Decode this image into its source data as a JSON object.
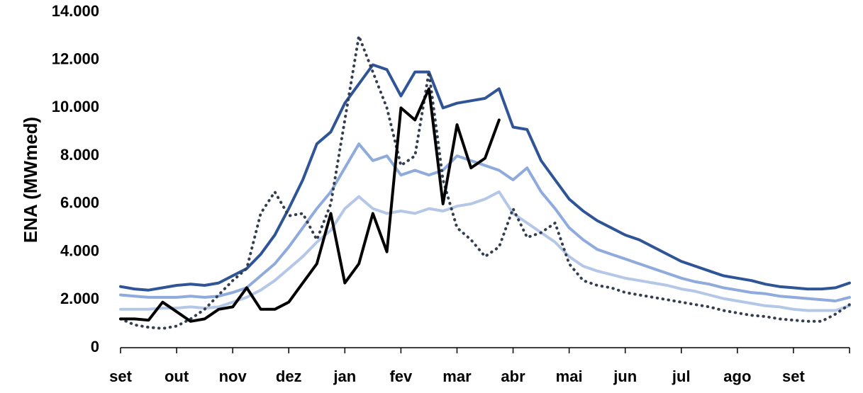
{
  "chart_data": {
    "type": "line",
    "y_label": "ENA (MWmed)",
    "x": [
      0,
      0.25,
      0.5,
      0.75,
      1,
      1.25,
      1.5,
      1.75,
      2,
      2.25,
      2.5,
      2.75,
      3,
      3.25,
      3.5,
      3.75,
      4,
      4.25,
      4.5,
      4.75,
      5,
      5.25,
      5.5,
      5.75,
      6,
      6.25,
      6.5,
      6.75,
      7,
      7.25,
      7.5,
      7.75,
      8,
      8.25,
      8.5,
      8.75,
      9,
      9.25,
      9.5,
      9.75,
      10,
      10.25,
      10.5,
      10.75,
      11,
      11.25,
      11.5,
      11.75,
      12,
      12.25,
      12.5,
      12.75,
      13
    ],
    "xlim": [
      0,
      13
    ],
    "xticks": [
      {
        "value": 0,
        "label": "set"
      },
      {
        "value": 1,
        "label": "out"
      },
      {
        "value": 2,
        "label": "nov"
      },
      {
        "value": 3,
        "label": "dez"
      },
      {
        "value": 4,
        "label": "jan"
      },
      {
        "value": 5,
        "label": "fev"
      },
      {
        "value": 6,
        "label": "mar"
      },
      {
        "value": 7,
        "label": "abr"
      },
      {
        "value": 8,
        "label": "mai"
      },
      {
        "value": 9,
        "label": "jun"
      },
      {
        "value": 10,
        "label": "jul"
      },
      {
        "value": 11,
        "label": "ago"
      },
      {
        "value": 12,
        "label": "set"
      }
    ],
    "ylim": [
      0,
      14000
    ],
    "yticks": [
      0,
      {
        "value": 2000,
        "label": "2.000"
      },
      {
        "value": 4000,
        "label": "4.000"
      },
      {
        "value": 6000,
        "label": "6.000"
      },
      {
        "value": 8000,
        "label": "8.000"
      },
      {
        "value": 10000,
        "label": "10.000"
      },
      {
        "value": 12000,
        "label": "12.000"
      },
      {
        "value": 14000,
        "label": "14.000"
      }
    ],
    "grid": false,
    "series": [
      {
        "color": "#b4c7e7",
        "style": "solid",
        "values": [
          1600,
          1600,
          1600,
          1650,
          1650,
          1700,
          1650,
          1700,
          1900,
          2100,
          2400,
          2800,
          3300,
          3800,
          4400,
          4900,
          5800,
          6300,
          5800,
          5600,
          5700,
          5600,
          5800,
          5700,
          5900,
          6000,
          6200,
          6500,
          5600,
          5200,
          4800,
          4400,
          3800,
          3400,
          3200,
          3050,
          2900,
          2800,
          2700,
          2600,
          2450,
          2350,
          2200,
          2050,
          1950,
          1850,
          1750,
          1700,
          1600,
          1550,
          1550,
          1550,
          1750
        ]
      },
      {
        "color": "#8faadc",
        "style": "solid",
        "values": [
          2200,
          2150,
          2100,
          2100,
          2100,
          2150,
          2100,
          2150,
          2300,
          2500,
          3000,
          3500,
          4200,
          5000,
          5800,
          6500,
          7500,
          8500,
          7800,
          8000,
          7200,
          7400,
          7200,
          7400,
          8000,
          7800,
          7600,
          7400,
          7000,
          7500,
          6500,
          5800,
          5000,
          4500,
          4100,
          3900,
          3700,
          3500,
          3300,
          3100,
          2900,
          2750,
          2650,
          2500,
          2400,
          2300,
          2250,
          2150,
          2100,
          2050,
          2000,
          1950,
          2100
        ]
      },
      {
        "color": "#2f5597",
        "style": "solid",
        "values": [
          2550,
          2450,
          2400,
          2500,
          2600,
          2650,
          2600,
          2700,
          3000,
          3300,
          3900,
          4700,
          5800,
          7000,
          8500,
          9000,
          10200,
          11000,
          11800,
          11600,
          10500,
          11500,
          11500,
          10000,
          10200,
          10300,
          10400,
          10800,
          9200,
          9100,
          7800,
          7000,
          6200,
          5700,
          5300,
          5000,
          4700,
          4500,
          4200,
          3900,
          3600,
          3400,
          3200,
          3000,
          2900,
          2800,
          2650,
          2550,
          2500,
          2450,
          2450,
          2500,
          2700
        ]
      },
      {
        "color": "#333f50",
        "style": "dotted",
        "values": [
          1200,
          950,
          850,
          800,
          900,
          1200,
          1600,
          2200,
          2800,
          3300,
          5600,
          6500,
          5500,
          5600,
          4500,
          6000,
          9500,
          13000,
          11500,
          10000,
          7600,
          8000,
          11500,
          7000,
          5000,
          4500,
          3800,
          4200,
          5800,
          4600,
          4800,
          5200,
          3500,
          2800,
          2600,
          2500,
          2300,
          2200,
          2100,
          2000,
          1900,
          1800,
          1700,
          1550,
          1450,
          1350,
          1300,
          1200,
          1150,
          1100,
          1100,
          1400,
          1800
        ]
      },
      {
        "color": "#000000",
        "style": "solid",
        "values": [
          1200,
          1200,
          1150,
          1900,
          1500,
          1100,
          1200,
          1600,
          1700,
          2500,
          1600,
          1600,
          1900,
          2700,
          3500,
          5600,
          2700,
          3500,
          5600,
          4000,
          10000,
          9500,
          10800,
          6000,
          9300,
          7500,
          7900,
          9500,
          null,
          null,
          null,
          null,
          null,
          null,
          null,
          null,
          null,
          null,
          null,
          null,
          null,
          null,
          null,
          null,
          null,
          null,
          null,
          null,
          null,
          null,
          null,
          null,
          null
        ]
      }
    ]
  }
}
